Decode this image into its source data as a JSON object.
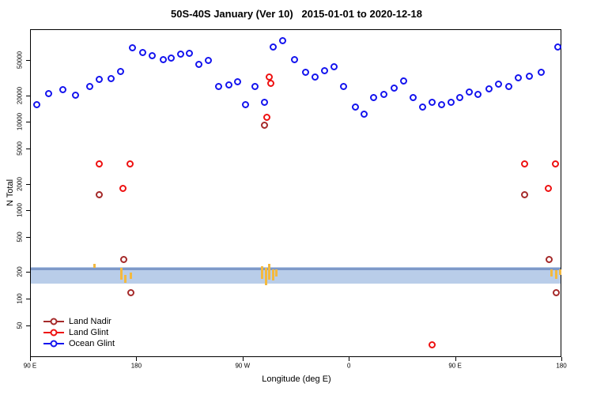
{
  "title": "50S-40S January (Ver 10)   2015-01-01 to 2020-12-18",
  "chart_data": {
    "type": "scatter",
    "title": "50S-40S January (Ver 10)   2015-01-01 to 2020-12-18",
    "xlabel": "Longitude (deg E)",
    "ylabel": "N Total",
    "grid": false,
    "x_axis": {
      "unit": "degrees along axis (wraps eastward from 90E)",
      "range": [
        90,
        540
      ],
      "ticks": [
        {
          "pos": 90,
          "label": "90 E"
        },
        {
          "pos": 180,
          "label": "180"
        },
        {
          "pos": 270,
          "label": "90 W"
        },
        {
          "pos": 360,
          "label": "0"
        },
        {
          "pos": 450,
          "label": "90 E"
        },
        {
          "pos": 540,
          "label": "180"
        }
      ]
    },
    "y_axis": {
      "scale": "log10",
      "log_range": [
        1.34,
        5.05
      ],
      "ticks": [
        50,
        100,
        200,
        500,
        1000,
        2000,
        5000,
        10000,
        20000,
        50000
      ]
    },
    "band": {
      "value_top": 235,
      "value_bottom": 150,
      "edge_value": 229,
      "fill": "#b9cde9",
      "edge_color": "#7e99c8"
    },
    "band_marks": {
      "color": "#f3b93f",
      "items": [
        [
          144,
          240,
          5
        ],
        [
          167,
          195,
          15
        ],
        [
          170,
          172,
          10
        ],
        [
          175,
          188,
          8
        ],
        [
          286,
          200,
          16
        ],
        [
          289,
          182,
          22
        ],
        [
          292,
          206,
          20
        ],
        [
          295,
          190,
          14
        ],
        [
          298,
          202,
          9
        ],
        [
          531,
          200,
          9
        ],
        [
          535,
          192,
          11
        ],
        [
          538,
          204,
          7
        ]
      ]
    },
    "series": [
      {
        "name": "Land Nadir",
        "color": "#a52a2a",
        "points": [
          [
            148,
            1550
          ],
          [
            169,
            285
          ],
          [
            175,
            120
          ],
          [
            288,
            9300
          ],
          [
            508,
            1550
          ],
          [
            529,
            285
          ],
          [
            535,
            120
          ]
        ]
      },
      {
        "name": "Land Glint",
        "color": "#ee1111",
        "points": [
          [
            148,
            3400
          ],
          [
            168,
            1800
          ],
          [
            174,
            3400
          ],
          [
            290,
            11500
          ],
          [
            292,
            33000
          ],
          [
            293,
            28000
          ],
          [
            430,
            31
          ],
          [
            508,
            3400
          ],
          [
            528,
            1800
          ],
          [
            534,
            3400
          ]
        ]
      },
      {
        "name": "Ocean Glint",
        "color": "#1414ee",
        "points": [
          [
            95,
            16000
          ],
          [
            105,
            21500
          ],
          [
            117,
            23500
          ],
          [
            128,
            20500
          ],
          [
            140,
            26000
          ],
          [
            148,
            31000
          ],
          [
            158,
            31500
          ],
          [
            166,
            38000
          ],
          [
            176,
            70000
          ],
          [
            185,
            62000
          ],
          [
            193,
            57000
          ],
          [
            202,
            52000
          ],
          [
            209,
            54000
          ],
          [
            217,
            60000
          ],
          [
            224,
            61000
          ],
          [
            232,
            46000
          ],
          [
            240,
            51000
          ],
          [
            249,
            26000
          ],
          [
            258,
            27000
          ],
          [
            265,
            29000
          ],
          [
            272,
            16000
          ],
          [
            280,
            26000
          ],
          [
            288,
            17000
          ],
          [
            295,
            72000
          ],
          [
            303,
            85000
          ],
          [
            313,
            52000
          ],
          [
            323,
            37000
          ],
          [
            331,
            33000
          ],
          [
            339,
            38500
          ],
          [
            347,
            43500
          ],
          [
            355,
            26000
          ],
          [
            365,
            15000
          ],
          [
            372,
            12500
          ],
          [
            380,
            19500
          ],
          [
            389,
            21000
          ],
          [
            398,
            24500
          ],
          [
            406,
            30000
          ],
          [
            414,
            19500
          ],
          [
            422,
            15000
          ],
          [
            430,
            17000
          ],
          [
            438,
            16000
          ],
          [
            446,
            17000
          ],
          [
            453,
            19500
          ],
          [
            461,
            22500
          ],
          [
            469,
            21000
          ],
          [
            478,
            24000
          ],
          [
            486,
            27500
          ],
          [
            495,
            25500
          ],
          [
            503,
            32000
          ],
          [
            512,
            33500
          ],
          [
            522,
            37000
          ],
          [
            536,
            72000
          ]
        ]
      }
    ],
    "legend": {
      "position": "bottom-left",
      "entries": [
        {
          "label": "Land Nadir",
          "color": "#a52a2a"
        },
        {
          "label": "Land Glint",
          "color": "#ee1111"
        },
        {
          "label": "Ocean Glint",
          "color": "#1414ee"
        }
      ]
    }
  }
}
